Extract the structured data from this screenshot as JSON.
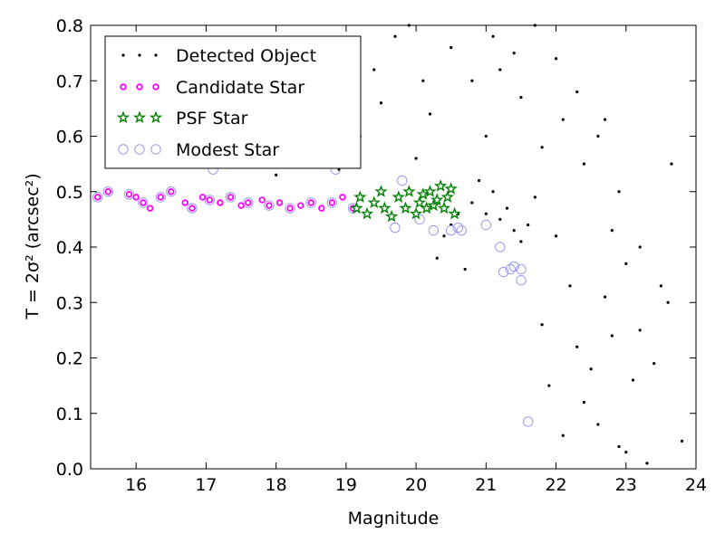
{
  "chart_data": {
    "type": "scatter",
    "title": "",
    "xlabel": "Magnitude",
    "ylabel": "T = 2σ² (arcsec²)",
    "xlim": [
      15.35,
      24.0
    ],
    "ylim": [
      0.0,
      0.8
    ],
    "xticks": [
      16,
      17,
      18,
      19,
      20,
      21,
      22,
      23,
      24
    ],
    "yticks": [
      0.0,
      0.1,
      0.2,
      0.3,
      0.4,
      0.5,
      0.6,
      0.7,
      0.8
    ],
    "xtick_labels": [
      "16",
      "17",
      "18",
      "19",
      "20",
      "21",
      "22",
      "23",
      "24"
    ],
    "ytick_labels": [
      "0.0",
      "0.1",
      "0.2",
      "0.3",
      "0.4",
      "0.5",
      "0.6",
      "0.7",
      "0.8"
    ],
    "grid": false,
    "legend": {
      "position": "top-left"
    },
    "series": [
      {
        "name": "Detected Object",
        "marker": "dot",
        "color": "#000000",
        "points": [
          [
            18.0,
            0.53
          ],
          [
            18.7,
            0.55
          ],
          [
            18.9,
            0.54
          ],
          [
            19.2,
            0.6
          ],
          [
            19.4,
            0.72
          ],
          [
            19.7,
            0.78
          ],
          [
            20.3,
            0.38
          ],
          [
            20.4,
            0.42
          ],
          [
            20.5,
            0.44
          ],
          [
            20.6,
            0.46
          ],
          [
            20.7,
            0.36
          ],
          [
            20.8,
            0.48
          ],
          [
            20.9,
            0.52
          ],
          [
            21.0,
            0.46
          ],
          [
            21.1,
            0.5
          ],
          [
            21.2,
            0.45
          ],
          [
            21.3,
            0.47
          ],
          [
            21.4,
            0.43
          ],
          [
            21.5,
            0.41
          ],
          [
            21.6,
            0.44
          ],
          [
            21.7,
            0.49
          ],
          [
            21.8,
            0.26
          ],
          [
            21.9,
            0.15
          ],
          [
            22.0,
            0.42
          ],
          [
            22.1,
            0.06
          ],
          [
            22.2,
            0.33
          ],
          [
            22.3,
            0.22
          ],
          [
            22.4,
            0.12
          ],
          [
            22.5,
            0.18
          ],
          [
            22.6,
            0.08
          ],
          [
            22.7,
            0.31
          ],
          [
            22.8,
            0.24
          ],
          [
            22.9,
            0.04
          ],
          [
            23.0,
            0.03
          ],
          [
            23.1,
            0.16
          ],
          [
            23.2,
            0.25
          ],
          [
            23.3,
            0.01
          ],
          [
            23.4,
            0.19
          ],
          [
            23.5,
            0.33
          ],
          [
            23.6,
            0.3
          ],
          [
            23.65,
            0.55
          ],
          [
            23.8,
            0.05
          ],
          [
            21.0,
            0.6
          ],
          [
            21.2,
            0.72
          ],
          [
            21.5,
            0.67
          ],
          [
            21.8,
            0.58
          ],
          [
            22.1,
            0.63
          ],
          [
            22.4,
            0.55
          ],
          [
            22.7,
            0.63
          ],
          [
            22.9,
            0.5
          ],
          [
            20.0,
            0.56
          ],
          [
            20.2,
            0.64
          ],
          [
            20.5,
            0.76
          ],
          [
            20.8,
            0.7
          ],
          [
            21.1,
            0.78
          ],
          [
            21.4,
            0.75
          ],
          [
            21.7,
            0.8
          ],
          [
            22.0,
            0.74
          ],
          [
            22.3,
            0.68
          ],
          [
            22.6,
            0.6
          ],
          [
            22.8,
            0.43
          ],
          [
            23.0,
            0.37
          ],
          [
            23.2,
            0.4
          ],
          [
            19.5,
            0.66
          ],
          [
            19.9,
            0.8
          ],
          [
            20.1,
            0.7
          ]
        ]
      },
      {
        "name": "Candidate Star",
        "marker": "circle-small",
        "color": "#ff00ff",
        "points": [
          [
            15.45,
            0.49
          ],
          [
            15.6,
            0.5
          ],
          [
            15.9,
            0.495
          ],
          [
            16.0,
            0.49
          ],
          [
            16.1,
            0.48
          ],
          [
            16.2,
            0.47
          ],
          [
            16.35,
            0.49
          ],
          [
            16.5,
            0.5
          ],
          [
            16.7,
            0.48
          ],
          [
            16.8,
            0.47
          ],
          [
            16.95,
            0.49
          ],
          [
            17.05,
            0.485
          ],
          [
            17.2,
            0.48
          ],
          [
            17.35,
            0.49
          ],
          [
            17.5,
            0.475
          ],
          [
            17.6,
            0.48
          ],
          [
            17.8,
            0.485
          ],
          [
            17.9,
            0.475
          ],
          [
            18.05,
            0.48
          ],
          [
            18.2,
            0.47
          ],
          [
            18.35,
            0.475
          ],
          [
            18.5,
            0.48
          ],
          [
            18.65,
            0.47
          ],
          [
            18.8,
            0.48
          ],
          [
            18.95,
            0.49
          ],
          [
            19.1,
            0.47
          ]
        ]
      },
      {
        "name": "PSF Star",
        "marker": "star",
        "color": "#008000",
        "points": [
          [
            19.15,
            0.47
          ],
          [
            19.2,
            0.49
          ],
          [
            19.3,
            0.46
          ],
          [
            19.4,
            0.48
          ],
          [
            19.5,
            0.5
          ],
          [
            19.55,
            0.47
          ],
          [
            19.65,
            0.455
          ],
          [
            19.75,
            0.49
          ],
          [
            19.85,
            0.47
          ],
          [
            19.9,
            0.5
          ],
          [
            20.0,
            0.46
          ],
          [
            20.05,
            0.48
          ],
          [
            20.1,
            0.495
          ],
          [
            20.15,
            0.47
          ],
          [
            20.2,
            0.5
          ],
          [
            20.25,
            0.475
          ],
          [
            20.3,
            0.485
          ],
          [
            20.35,
            0.51
          ],
          [
            20.4,
            0.47
          ],
          [
            20.45,
            0.49
          ],
          [
            20.5,
            0.505
          ],
          [
            20.55,
            0.46
          ]
        ]
      },
      {
        "name": "Modest Star",
        "marker": "open-circle",
        "color": "#9999ee",
        "points": [
          [
            15.45,
            0.49
          ],
          [
            15.6,
            0.5
          ],
          [
            15.9,
            0.495
          ],
          [
            16.1,
            0.48
          ],
          [
            16.35,
            0.49
          ],
          [
            16.5,
            0.5
          ],
          [
            16.8,
            0.47
          ],
          [
            17.05,
            0.485
          ],
          [
            17.35,
            0.49
          ],
          [
            17.6,
            0.48
          ],
          [
            17.9,
            0.475
          ],
          [
            18.2,
            0.47
          ],
          [
            18.5,
            0.48
          ],
          [
            18.8,
            0.48
          ],
          [
            18.85,
            0.54
          ],
          [
            19.1,
            0.47
          ],
          [
            19.7,
            0.435
          ],
          [
            19.8,
            0.52
          ],
          [
            20.05,
            0.45
          ],
          [
            20.25,
            0.43
          ],
          [
            20.5,
            0.43
          ],
          [
            20.6,
            0.435
          ],
          [
            20.65,
            0.43
          ],
          [
            21.0,
            0.44
          ],
          [
            21.2,
            0.4
          ],
          [
            21.25,
            0.355
          ],
          [
            21.35,
            0.36
          ],
          [
            21.4,
            0.365
          ],
          [
            21.5,
            0.34
          ],
          [
            21.5,
            0.36
          ],
          [
            21.6,
            0.085
          ],
          [
            17.1,
            0.54
          ]
        ]
      }
    ]
  },
  "legend_items": [
    {
      "label": "Detected Object",
      "marker": "dot"
    },
    {
      "label": "Candidate Star",
      "marker": "circle-small"
    },
    {
      "label": "PSF Star",
      "marker": "star"
    },
    {
      "label": "Modest Star",
      "marker": "open-circle"
    }
  ]
}
